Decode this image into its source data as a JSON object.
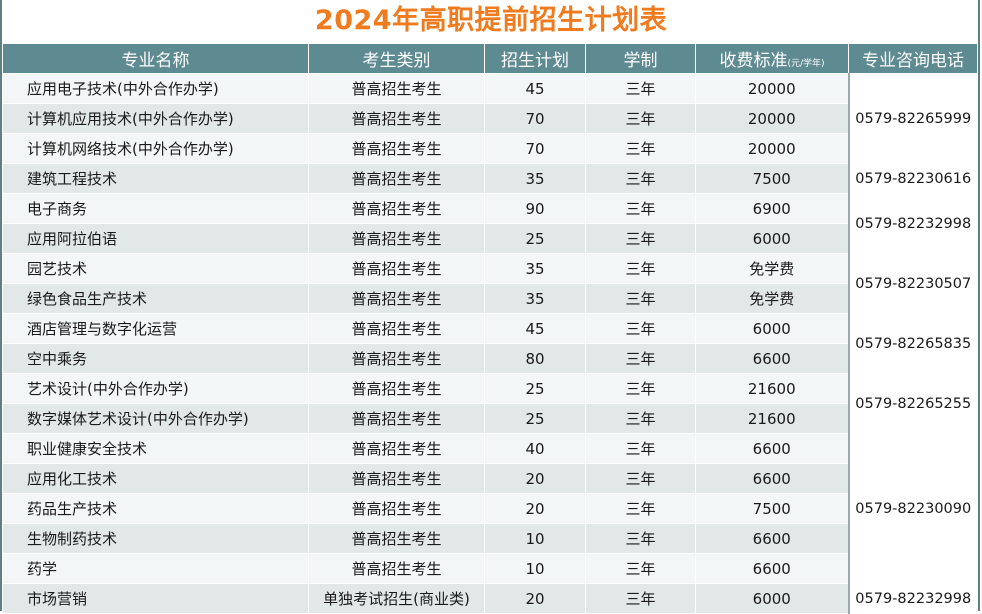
{
  "title": "2024年高职提前招生计划表",
  "headers": {
    "major": "专业名称",
    "category": "考生类别",
    "plan": "招生计划",
    "duration": "学制",
    "fee": "收费标准",
    "fee_unit": "(元/学年)",
    "phone": "专业咨询电话"
  },
  "rows": [
    {
      "major": "应用电子技术(中外合作办学)",
      "category": "普高招生考生",
      "plan": "45",
      "duration": "三年",
      "fee": "20000"
    },
    {
      "major": "计算机应用技术(中外合作办学)",
      "category": "普高招生考生",
      "plan": "70",
      "duration": "三年",
      "fee": "20000"
    },
    {
      "major": "计算机网络技术(中外合作办学)",
      "category": "普高招生考生",
      "plan": "70",
      "duration": "三年",
      "fee": "20000"
    },
    {
      "major": "建筑工程技术",
      "category": "普高招生考生",
      "plan": "35",
      "duration": "三年",
      "fee": "7500"
    },
    {
      "major": "电子商务",
      "category": "普高招生考生",
      "plan": "90",
      "duration": "三年",
      "fee": "6900"
    },
    {
      "major": "应用阿拉伯语",
      "category": "普高招生考生",
      "plan": "25",
      "duration": "三年",
      "fee": "6000"
    },
    {
      "major": "园艺技术",
      "category": "普高招生考生",
      "plan": "35",
      "duration": "三年",
      "fee": "免学费"
    },
    {
      "major": "绿色食品生产技术",
      "category": "普高招生考生",
      "plan": "35",
      "duration": "三年",
      "fee": "免学费"
    },
    {
      "major": "酒店管理与数字化运营",
      "category": "普高招生考生",
      "plan": "45",
      "duration": "三年",
      "fee": "6000"
    },
    {
      "major": "空中乘务",
      "category": "普高招生考生",
      "plan": "80",
      "duration": "三年",
      "fee": "6600"
    },
    {
      "major": "艺术设计(中外合作办学)",
      "category": "普高招生考生",
      "plan": "25",
      "duration": "三年",
      "fee": "21600"
    },
    {
      "major": "数字媒体艺术设计(中外合作办学)",
      "category": "普高招生考生",
      "plan": "25",
      "duration": "三年",
      "fee": "21600"
    },
    {
      "major": "职业健康安全技术",
      "category": "普高招生考生",
      "plan": "40",
      "duration": "三年",
      "fee": "6600"
    },
    {
      "major": "应用化工技术",
      "category": "普高招生考生",
      "plan": "20",
      "duration": "三年",
      "fee": "6600"
    },
    {
      "major": "药品生产技术",
      "category": "普高招生考生",
      "plan": "20",
      "duration": "三年",
      "fee": "7500"
    },
    {
      "major": "生物制药技术",
      "category": "普高招生考生",
      "plan": "10",
      "duration": "三年",
      "fee": "6600"
    },
    {
      "major": "药学",
      "category": "普高招生考生",
      "plan": "10",
      "duration": "三年",
      "fee": "6600"
    },
    {
      "major": "市场营销",
      "category": "单独考试招生(商业类)",
      "plan": "20",
      "duration": "三年",
      "fee": "6000"
    }
  ],
  "phones": [
    {
      "number": "0579-82265999",
      "rows": 3
    },
    {
      "number": "0579-82230616",
      "rows": 1
    },
    {
      "number": "0579-82232998",
      "rows": 2
    },
    {
      "number": "0579-82230507",
      "rows": 2
    },
    {
      "number": "0579-82265835",
      "rows": 2
    },
    {
      "number": "0579-82265255",
      "rows": 2
    },
    {
      "number": "0579-82230090",
      "rows": 5
    },
    {
      "number": "0579-82232998",
      "rows": 1
    }
  ]
}
